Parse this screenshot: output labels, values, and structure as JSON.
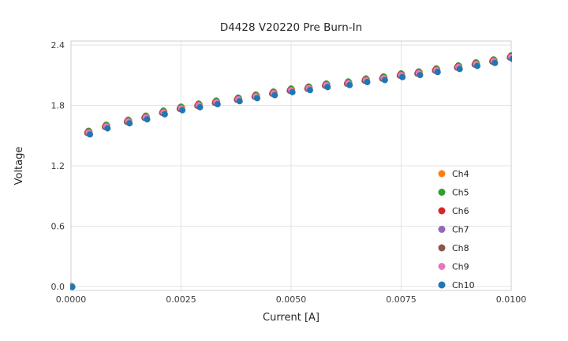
{
  "chart_data": {
    "type": "scatter",
    "title": "D4428 V20220 Pre Burn-In",
    "xlabel": "Current [A]",
    "ylabel": "Voltage",
    "xlim": [
      0.0,
      0.01
    ],
    "ylim": [
      0.0,
      2.4
    ],
    "ylim_render": [
      -0.04,
      2.44
    ],
    "grid": true,
    "legend_position": "lower right",
    "xticks": {
      "values": [
        0.0,
        0.0025,
        0.005,
        0.0075,
        0.01
      ],
      "labels": [
        "0.0000",
        "0.0025",
        "0.0050",
        "0.0075",
        "0.0100"
      ]
    },
    "yticks": {
      "values": [
        0.0,
        0.6,
        1.2,
        1.8,
        2.4
      ],
      "labels": [
        "0.0",
        "0.6",
        "1.2",
        "1.8",
        "2.4"
      ]
    },
    "x": [
      0.0,
      0.0004,
      0.0008,
      0.0013,
      0.0017,
      0.0021,
      0.0025,
      0.0029,
      0.0033,
      0.0038,
      0.0042,
      0.0046,
      0.005,
      0.0054,
      0.0058,
      0.0063,
      0.0067,
      0.0071,
      0.0075,
      0.0079,
      0.0083,
      0.0088,
      0.0092,
      0.0096,
      0.01
    ],
    "base_values": [
      0.0,
      1.53,
      1.59,
      1.64,
      1.68,
      1.73,
      1.77,
      1.8,
      1.83,
      1.86,
      1.89,
      1.92,
      1.95,
      1.97,
      2.0,
      2.02,
      2.05,
      2.07,
      2.1,
      2.12,
      2.15,
      2.18,
      2.21,
      2.24,
      2.28
    ],
    "series": [
      {
        "name": "Ch4",
        "color": "#ff7f0e",
        "dy": 0.01,
        "dx": 2e-05
      },
      {
        "name": "Ch5",
        "color": "#2ca02c",
        "dy": 0.018,
        "dx": 0.0
      },
      {
        "name": "Ch6",
        "color": "#d62728",
        "dy": 0.006,
        "dx": -2e-05
      },
      {
        "name": "Ch7",
        "color": "#9467bd",
        "dy": -0.012,
        "dx": 2e-05
      },
      {
        "name": "Ch8",
        "color": "#8c564b",
        "dy": -0.004,
        "dx": -3e-05
      },
      {
        "name": "Ch9",
        "color": "#e377c2",
        "dy": 0.002,
        "dx": 0.0
      },
      {
        "name": "Ch10",
        "color": "#1f77b4",
        "dy": -0.018,
        "dx": 3e-05
      }
    ],
    "colors": {
      "grid": "#e3e3e3",
      "spine": "#cfcfcf",
      "background": "#ffffff"
    }
  }
}
